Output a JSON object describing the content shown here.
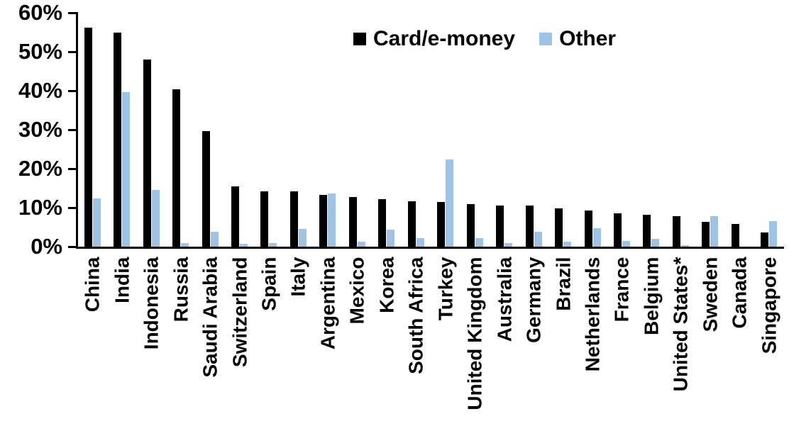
{
  "chart_data": {
    "type": "bar",
    "title": "",
    "categories": [
      "China",
      "India",
      "Indonesia",
      "Russia",
      "Saudi Arabia",
      "Switzerland",
      "Spain",
      "Italy",
      "Argentina",
      "Mexico",
      "Korea",
      "South Africa",
      "Turkey",
      "United Kingdom",
      "Australia",
      "Germany",
      "Brazil",
      "Netherlands",
      "France",
      "Belgium",
      "United States*",
      "Sweden",
      "Canada",
      "Singapore"
    ],
    "series": [
      {
        "name": "Card/e-money",
        "color": "#000000",
        "values": [
          56.2,
          55.0,
          48.0,
          40.4,
          29.7,
          15.5,
          14.2,
          14.1,
          13.2,
          12.8,
          12.1,
          11.6,
          11.5,
          10.9,
          10.6,
          10.5,
          9.9,
          9.2,
          8.6,
          8.1,
          7.8,
          6.4,
          5.8,
          3.7
        ]
      },
      {
        "name": "Other",
        "color": "#9DC3E6",
        "values": [
          12.3,
          39.7,
          14.5,
          1.0,
          3.9,
          0.8,
          1.0,
          4.6,
          13.7,
          1.3,
          4.3,
          2.2,
          22.3,
          2.2,
          1.0,
          3.9,
          1.2,
          4.8,
          1.5,
          2.0,
          0.3,
          7.9,
          0.0,
          6.6
        ]
      }
    ],
    "xlabel": "",
    "ylabel": "",
    "ylim": [
      0,
      60
    ],
    "ytick_step": 10,
    "ytick_suffix": "%",
    "ytick_labels": [
      "0%",
      "10%",
      "20%",
      "30%",
      "40%",
      "50%",
      "60%"
    ],
    "grid": false,
    "legend_position": "top-center",
    "axis_color": "#000000",
    "background_color": "#FFFFFF"
  }
}
